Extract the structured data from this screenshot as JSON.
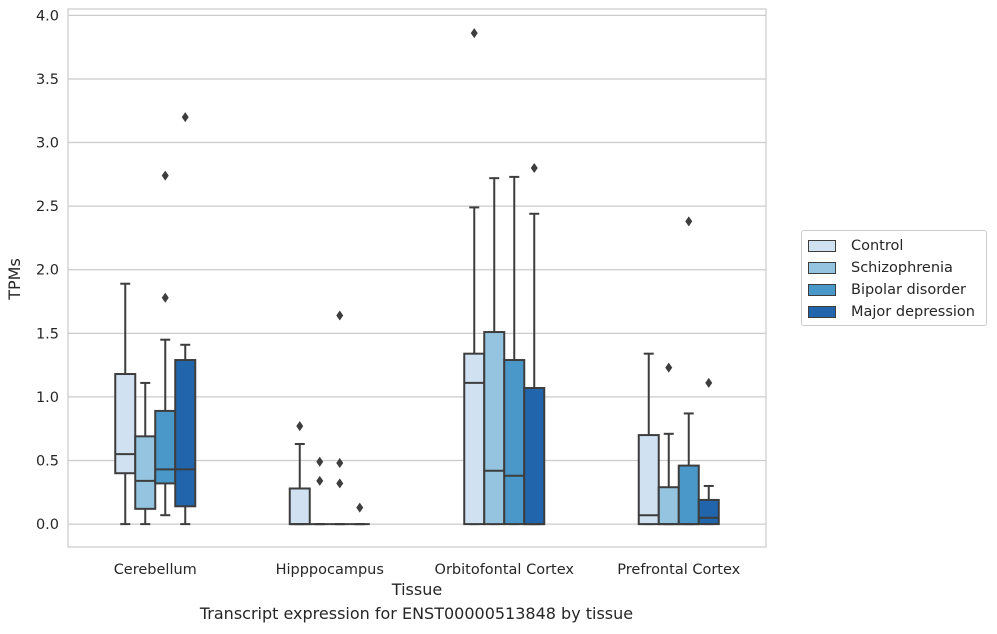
{
  "caption": "Transcript expression for ENST00000513848 by tissue",
  "chart_data": {
    "type": "box",
    "title": "",
    "xlabel": "Tissue",
    "ylabel": "TPMs",
    "ylim": [
      -0.18,
      4.05
    ],
    "yticks": [
      0.0,
      0.5,
      1.0,
      1.5,
      2.0,
      2.5,
      3.0,
      3.5,
      4.0
    ],
    "ytick_labels": [
      "0.0",
      "0.5",
      "1.0",
      "1.5",
      "2.0",
      "2.5",
      "3.0",
      "3.5",
      "4.0"
    ],
    "grid": "horizontal",
    "legend_position": "right",
    "categories": [
      "Cerebellum",
      "Hipppocampus",
      "Orbitofontal Cortex",
      "Prefrontal Cortex"
    ],
    "series": [
      {
        "name": "Control",
        "color": "#d0e1f2",
        "boxes": [
          {
            "whisker_low": 0.0,
            "q1": 0.4,
            "median": 0.55,
            "q3": 1.18,
            "whisker_high": 1.89,
            "outliers": []
          },
          {
            "whisker_low": 0.0,
            "q1": 0.0,
            "median": 0.0,
            "q3": 0.28,
            "whisker_high": 0.63,
            "outliers": [
              0.77
            ]
          },
          {
            "whisker_low": 0.0,
            "q1": 0.0,
            "median": 1.11,
            "q3": 1.34,
            "whisker_high": 2.49,
            "outliers": [
              3.86
            ]
          },
          {
            "whisker_low": 0.0,
            "q1": 0.0,
            "median": 0.07,
            "q3": 0.7,
            "whisker_high": 1.34,
            "outliers": []
          }
        ]
      },
      {
        "name": "Schizophrenia",
        "color": "#94c4df",
        "boxes": [
          {
            "whisker_low": 0.0,
            "q1": 0.12,
            "median": 0.34,
            "q3": 0.69,
            "whisker_high": 1.11,
            "outliers": []
          },
          {
            "whisker_low": 0.0,
            "q1": 0.0,
            "median": 0.0,
            "q3": 0.0,
            "whisker_high": 0.0,
            "outliers": [
              0.34,
              0.49
            ]
          },
          {
            "whisker_low": 0.0,
            "q1": 0.0,
            "median": 0.42,
            "q3": 1.51,
            "whisker_high": 2.72,
            "outliers": []
          },
          {
            "whisker_low": 0.0,
            "q1": 0.0,
            "median": 0.0,
            "q3": 0.29,
            "whisker_high": 0.71,
            "outliers": [
              1.23
            ]
          }
        ]
      },
      {
        "name": "Bipolar disorder",
        "color": "#4a98c9",
        "boxes": [
          {
            "whisker_low": 0.07,
            "q1": 0.32,
            "median": 0.43,
            "q3": 0.89,
            "whisker_high": 1.45,
            "outliers": [
              1.78,
              2.74
            ]
          },
          {
            "whisker_low": 0.0,
            "q1": 0.0,
            "median": 0.0,
            "q3": 0.0,
            "whisker_high": 0.0,
            "outliers": [
              0.32,
              0.48,
              1.64
            ]
          },
          {
            "whisker_low": 0.0,
            "q1": 0.0,
            "median": 0.38,
            "q3": 1.29,
            "whisker_high": 2.73,
            "outliers": []
          },
          {
            "whisker_low": 0.0,
            "q1": 0.0,
            "median": 0.0,
            "q3": 0.46,
            "whisker_high": 0.87,
            "outliers": [
              2.38
            ]
          }
        ]
      },
      {
        "name": "Major depression",
        "color": "#2166ac",
        "boxes": [
          {
            "whisker_low": 0.0,
            "q1": 0.14,
            "median": 0.43,
            "q3": 1.29,
            "whisker_high": 1.41,
            "outliers": [
              3.2
            ]
          },
          {
            "whisker_low": 0.0,
            "q1": 0.0,
            "median": 0.0,
            "q3": 0.0,
            "whisker_high": 0.0,
            "outliers": [
              0.13
            ]
          },
          {
            "whisker_low": 0.0,
            "q1": 0.0,
            "median": 0.0,
            "q3": 1.07,
            "whisker_high": 2.44,
            "outliers": [
              2.8
            ]
          },
          {
            "whisker_low": 0.0,
            "q1": 0.0,
            "median": 0.05,
            "q3": 0.19,
            "whisker_high": 0.3,
            "outliers": [
              1.11
            ]
          }
        ]
      }
    ]
  }
}
